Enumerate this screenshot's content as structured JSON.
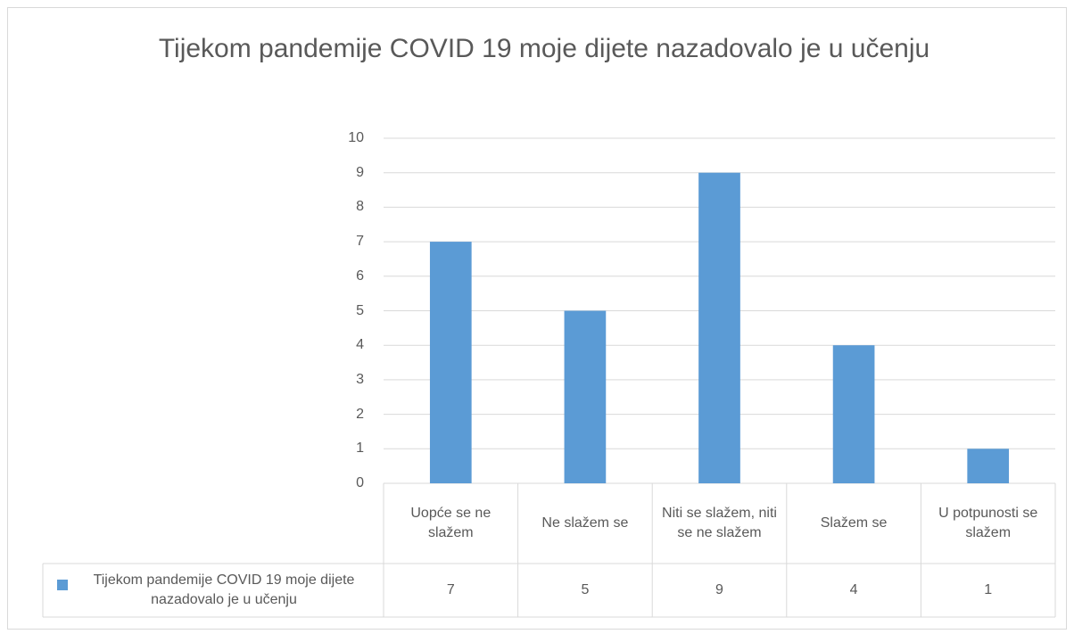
{
  "chart_data": {
    "type": "bar",
    "title": "Tijekom pandemije COVID 19 moje dijete nazadovalo je u učenju",
    "categories": [
      "Uopće se ne slažem",
      "Ne slažem se",
      "Niti se slažem, niti se ne slažem",
      "Slažem se",
      "U potpunosti se slažem"
    ],
    "series": [
      {
        "name": "Tijekom pandemije COVID 19 moje dijete nazadovalo je u učenju",
        "color": "#5b9bd5",
        "values": [
          7,
          5,
          9,
          4,
          1
        ]
      }
    ],
    "ylim": [
      0,
      10
    ],
    "yticks": [
      0,
      1,
      2,
      3,
      4,
      5,
      6,
      7,
      8,
      9,
      10
    ],
    "grid": true
  }
}
